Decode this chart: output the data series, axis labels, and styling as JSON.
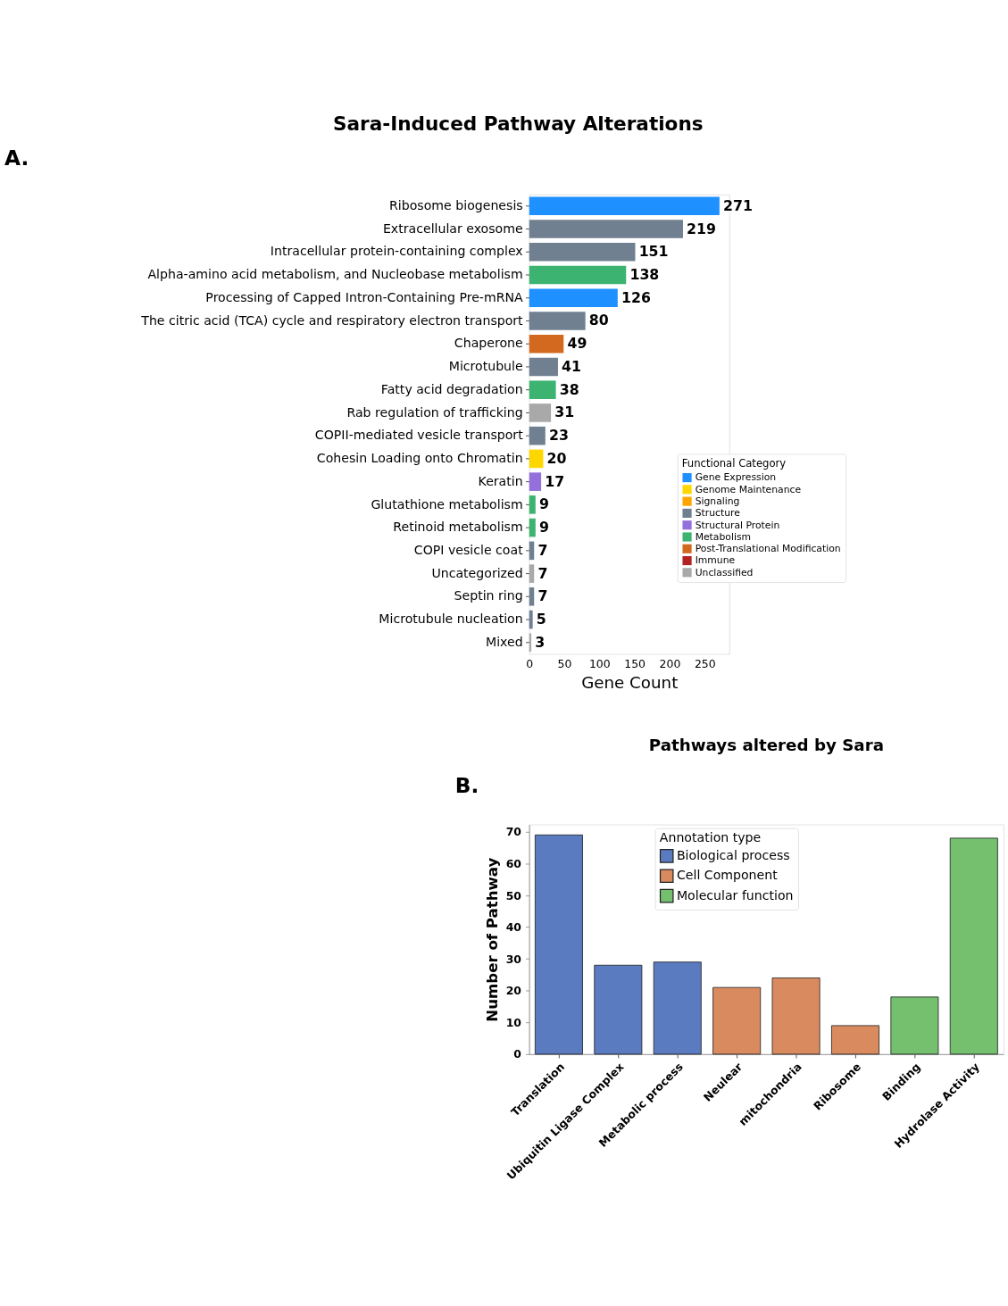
{
  "chart_data": [
    {
      "type": "bar",
      "orientation": "horizontal",
      "title": "Sara-Induced Pathway Alterations",
      "xlabel": "Gene Count",
      "legend_title": "Functional Category",
      "legend": "bottom right",
      "grid": false,
      "data_labels": true,
      "annotations": [
        "A."
      ],
      "categories": [
        "Ribosome biogenesis",
        "Extracellular exosome",
        "Intracellular protein-containing complex",
        "Alpha-amino acid metabolism, and Nucleobase metabolism",
        "Processing of Capped Intron-Containing Pre-mRNA",
        "The citric acid (TCA) cycle and respiratory electron transport",
        "Chaperone",
        "Microtubule",
        "Fatty acid degradation",
        "Rab regulation of trafficking",
        "COPII-mediated vesicle transport",
        "Cohesin Loading onto Chromatin",
        "Keratin",
        "Glutathione metabolism",
        "Retinoid metabolism",
        "COPI vesicle coat",
        "Uncategorized",
        "Septin ring",
        "Microtubule nucleation",
        "Mixed"
      ],
      "xlim": [
        0,
        285
      ],
      "xticks": [
        0,
        50,
        100,
        150,
        200,
        250
      ],
      "series": [
        {
          "name": "Gene Expression",
          "color": "#1e90ff",
          "values": [
            271,
            null,
            null,
            null,
            126,
            null,
            null,
            null,
            null,
            null,
            null,
            null,
            null,
            null,
            null,
            null,
            null,
            null,
            null,
            null
          ]
        },
        {
          "name": "Genome Maintenance",
          "color": "#ffd700",
          "values": [
            null,
            null,
            null,
            null,
            null,
            null,
            null,
            null,
            null,
            null,
            null,
            20,
            null,
            null,
            null,
            null,
            null,
            null,
            null,
            null
          ]
        },
        {
          "name": "Signaling",
          "color": "#ffa500",
          "values": [
            null,
            null,
            null,
            null,
            null,
            null,
            null,
            null,
            null,
            null,
            null,
            null,
            null,
            null,
            null,
            null,
            null,
            null,
            null,
            null
          ]
        },
        {
          "name": "Structure",
          "color": "#708090",
          "values": [
            null,
            219,
            151,
            null,
            null,
            80,
            null,
            41,
            null,
            null,
            23,
            null,
            null,
            null,
            null,
            7,
            null,
            7,
            5,
            null
          ]
        },
        {
          "name": "Structural Protein",
          "color": "#9370db",
          "values": [
            null,
            null,
            null,
            null,
            null,
            null,
            null,
            null,
            null,
            null,
            null,
            null,
            17,
            null,
            null,
            null,
            null,
            null,
            null,
            null
          ]
        },
        {
          "name": "Metabolism",
          "color": "#3cb371",
          "values": [
            null,
            null,
            null,
            138,
            null,
            null,
            null,
            null,
            38,
            null,
            null,
            null,
            null,
            9,
            9,
            null,
            null,
            null,
            null,
            null
          ]
        },
        {
          "name": "Post-Translational Modification",
          "color": "#d2691e",
          "values": [
            null,
            null,
            null,
            null,
            null,
            null,
            49,
            null,
            null,
            null,
            null,
            null,
            null,
            null,
            null,
            null,
            null,
            null,
            null,
            null
          ]
        },
        {
          "name": "Immune",
          "color": "#b22222",
          "values": [
            null,
            null,
            null,
            null,
            null,
            null,
            null,
            null,
            null,
            null,
            null,
            null,
            null,
            null,
            null,
            null,
            null,
            null,
            null,
            null
          ]
        },
        {
          "name": "Unclassified",
          "color": "#a9a9a9",
          "values": [
            null,
            null,
            null,
            null,
            null,
            null,
            null,
            null,
            null,
            31,
            null,
            null,
            null,
            null,
            null,
            null,
            7,
            null,
            null,
            3
          ]
        }
      ]
    },
    {
      "type": "bar",
      "title": "Pathways altered by Sara",
      "ylabel": "Number of Pathway",
      "legend_title": "Annotation type",
      "legend": "top left",
      "grid": false,
      "annotations": [
        "B."
      ],
      "categories": [
        "Translation",
        "Ubiquitin Ligase Complex",
        "Metabolic process",
        "Neulear",
        "mitochondria",
        "Ribosome",
        "Binding",
        "Hydrolase Activity"
      ],
      "ylim": [
        0,
        72.3
      ],
      "yticks": [
        0,
        10,
        20,
        30,
        40,
        50,
        60,
        70
      ],
      "series": [
        {
          "name": "Biological process",
          "color": "#5a7bc0",
          "values": [
            69,
            28,
            29,
            null,
            null,
            null,
            null,
            null
          ]
        },
        {
          "name": "Cell Component",
          "color": "#d98b5f",
          "values": [
            null,
            null,
            null,
            21,
            24,
            9,
            null,
            null
          ]
        },
        {
          "name": "Molecular function",
          "color": "#74c06f",
          "values": [
            null,
            null,
            null,
            null,
            null,
            null,
            18,
            68
          ]
        }
      ]
    }
  ]
}
